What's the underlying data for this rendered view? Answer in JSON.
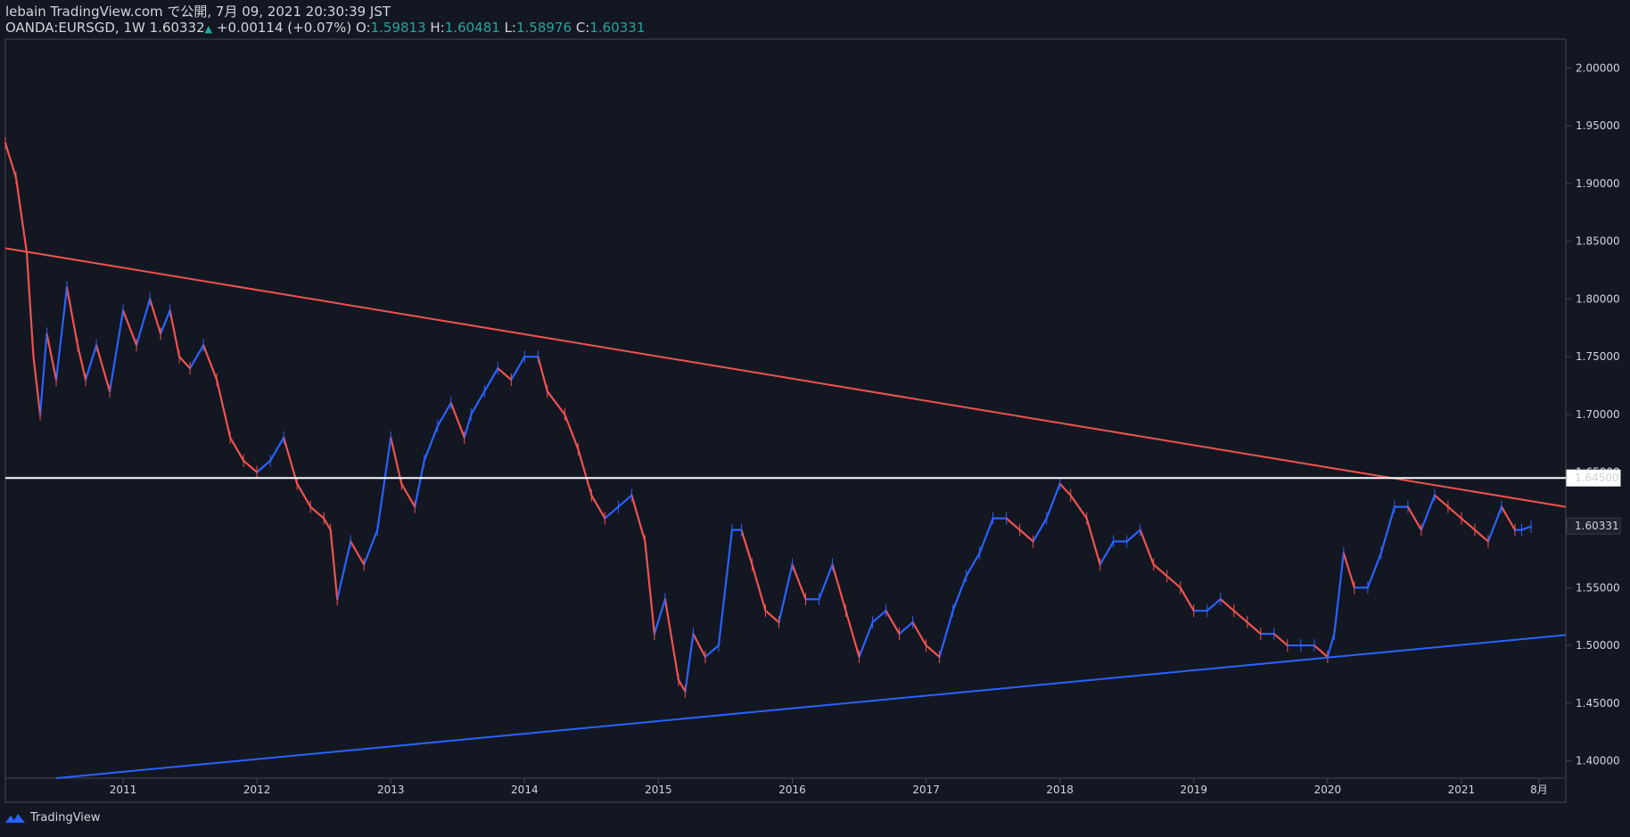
{
  "header": {
    "line1": "lebain TradingView.com で公開, 7月 09, 2021 20:30:39 JST",
    "symbol": "OANDA:EURSGD, 1W",
    "last": "1.60332",
    "change": "+0.00114 (+0.07%)",
    "o_label": "O:",
    "o_value": "1.59813",
    "h_label": "H:",
    "h_value": "1.60481",
    "l_label": "L:",
    "l_value": "1.58976",
    "c_label": "C:",
    "c_value": "1.60331"
  },
  "footer": {
    "brand": "TradingView"
  },
  "colors": {
    "background": "#131722",
    "up": "#2962ff",
    "down": "#ef5350",
    "resistance_line": "#ef5350",
    "support_line": "#2962ff",
    "horizontal_line": "#ffffff",
    "text": "#d1d4dc",
    "header_values": "#26a69a"
  },
  "chart_data": {
    "type": "line",
    "title": "OANDA:EURSGD, 1W",
    "x_ticks": [
      "2011",
      "2012",
      "2013",
      "2014",
      "2015",
      "2016",
      "2017",
      "2018",
      "2019",
      "2020",
      "2021",
      "8月"
    ],
    "y_ticks": [
      "1.40000",
      "1.45000",
      "1.50000",
      "1.55000",
      "1.60000",
      "1.65000",
      "1.70000",
      "1.75000",
      "1.80000",
      "1.85000",
      "1.90000",
      "1.95000",
      "2.00000"
    ],
    "ylim": [
      1.385,
      2.025
    ],
    "xlim": [
      2010.12,
      2021.78
    ],
    "price_labels": [
      {
        "value": 1.645,
        "text": "1.64500",
        "style": "white"
      },
      {
        "value": 1.60331,
        "text": "1.60331",
        "style": "dark"
      }
    ],
    "series": [
      {
        "values_x": [
          2010.12,
          2010.2,
          2010.28,
          2010.33,
          2010.38,
          2010.43,
          2010.5,
          2010.58,
          2010.66,
          2010.72,
          2010.8,
          2010.9,
          2011.0,
          2011.1,
          2011.2,
          2011.28,
          2011.35,
          2011.42,
          2011.5,
          2011.6,
          2011.7,
          2011.8,
          2011.9,
          2012.0,
          2012.1,
          2012.2,
          2012.3,
          2012.4,
          2012.5,
          2012.55,
          2012.6,
          2012.7,
          2012.8,
          2012.9,
          2013.0,
          2013.08,
          2013.18,
          2013.25,
          2013.35,
          2013.45,
          2013.55,
          2013.6,
          2013.7,
          2013.8,
          2013.9,
          2014.0,
          2014.1,
          2014.17,
          2014.3,
          2014.4,
          2014.5,
          2014.6,
          2014.7,
          2014.8,
          2014.9,
          2014.97,
          2015.05,
          2015.15,
          2015.2,
          2015.26,
          2015.35,
          2015.45,
          2015.55,
          2015.62,
          2015.7,
          2015.8,
          2015.9,
          2016.0,
          2016.1,
          2016.2,
          2016.3,
          2016.4,
          2016.5,
          2016.6,
          2016.7,
          2016.8,
          2016.9,
          2017.0,
          2017.1,
          2017.2,
          2017.3,
          2017.4,
          2017.5,
          2017.6,
          2017.7,
          2017.8,
          2017.9,
          2018.0,
          2018.08,
          2018.2,
          2018.3,
          2018.4,
          2018.5,
          2018.6,
          2018.7,
          2018.8,
          2018.9,
          2019.0,
          2019.1,
          2019.2,
          2019.3,
          2019.4,
          2019.5,
          2019.6,
          2019.7,
          2019.8,
          2019.9,
          2020.0,
          2020.05,
          2020.12,
          2020.2,
          2020.3,
          2020.4,
          2020.5,
          2020.6,
          2020.7,
          2020.8,
          2020.9,
          2021.0,
          2021.1,
          2021.2,
          2021.3,
          2021.4,
          2021.45,
          2021.52
        ],
        "values": [
          1.935,
          1.905,
          1.84,
          1.75,
          1.7,
          1.77,
          1.73,
          1.81,
          1.76,
          1.73,
          1.76,
          1.72,
          1.79,
          1.76,
          1.8,
          1.77,
          1.79,
          1.75,
          1.74,
          1.76,
          1.73,
          1.68,
          1.66,
          1.65,
          1.66,
          1.68,
          1.64,
          1.62,
          1.61,
          1.6,
          1.54,
          1.59,
          1.57,
          1.6,
          1.68,
          1.64,
          1.62,
          1.66,
          1.69,
          1.71,
          1.68,
          1.7,
          1.72,
          1.74,
          1.73,
          1.75,
          1.75,
          1.72,
          1.7,
          1.67,
          1.63,
          1.61,
          1.62,
          1.63,
          1.59,
          1.51,
          1.54,
          1.47,
          1.46,
          1.51,
          1.49,
          1.5,
          1.6,
          1.6,
          1.57,
          1.53,
          1.52,
          1.57,
          1.54,
          1.54,
          1.57,
          1.53,
          1.49,
          1.52,
          1.53,
          1.51,
          1.52,
          1.5,
          1.49,
          1.53,
          1.56,
          1.58,
          1.61,
          1.61,
          1.6,
          1.59,
          1.61,
          1.64,
          1.63,
          1.61,
          1.57,
          1.59,
          1.59,
          1.6,
          1.57,
          1.56,
          1.55,
          1.53,
          1.53,
          1.54,
          1.53,
          1.52,
          1.51,
          1.51,
          1.5,
          1.5,
          1.5,
          1.49,
          1.51,
          1.58,
          1.55,
          1.55,
          1.58,
          1.62,
          1.62,
          1.6,
          1.63,
          1.62,
          1.61,
          1.6,
          1.59,
          1.62,
          1.6,
          1.6,
          1.603
        ]
      }
    ],
    "trendlines": [
      {
        "name": "resistance",
        "x": [
          2010.12,
          2021.78
        ],
        "y": [
          1.844,
          1.62
        ]
      },
      {
        "name": "support",
        "x": [
          2010.5,
          2021.78
        ],
        "y": [
          1.385,
          1.509
        ]
      },
      {
        "name": "horizontal",
        "y": 1.645
      }
    ]
  }
}
